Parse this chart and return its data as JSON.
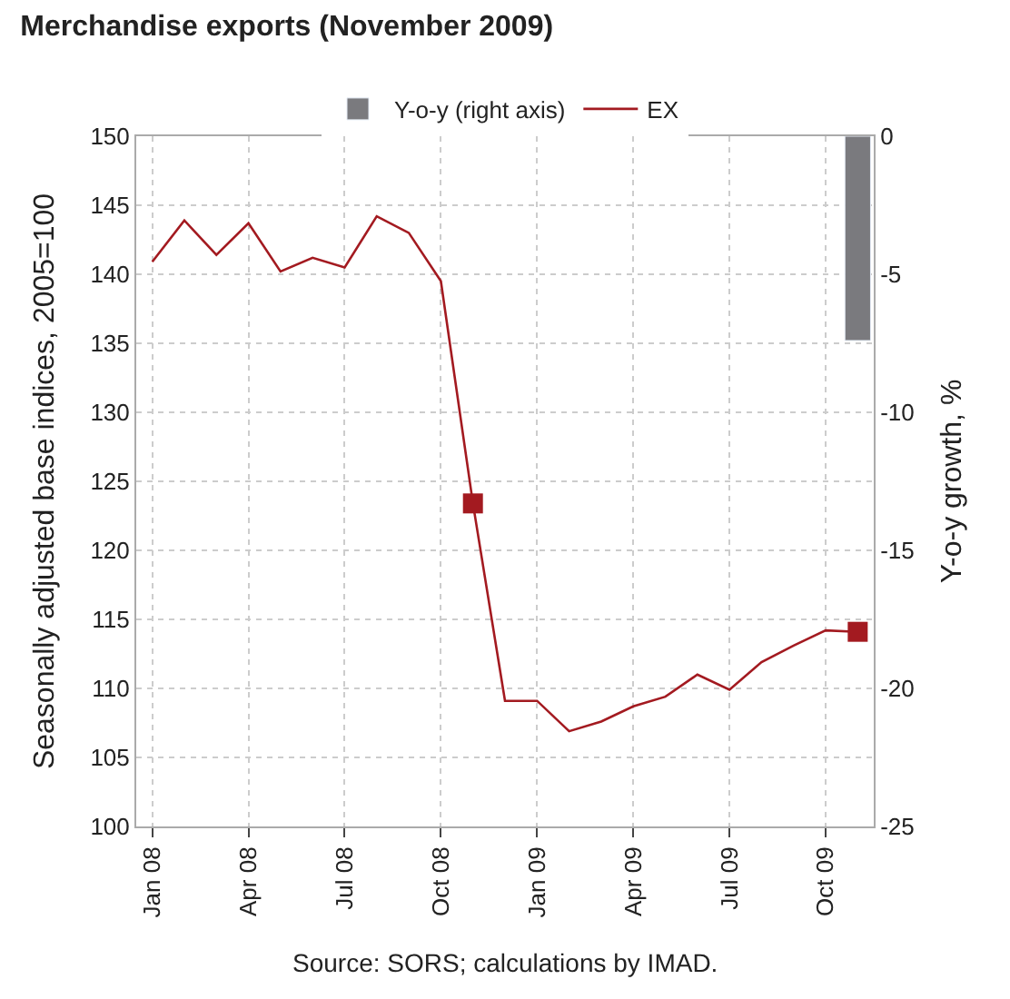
{
  "chart_data": {
    "type": "line",
    "title": "Merchandise exports (November 2009)",
    "categories": [
      "Jan 08",
      null,
      null,
      "Apr 08",
      null,
      null,
      "Jul 08",
      null,
      null,
      "Oct 08",
      null,
      null,
      "Jan 09",
      null,
      null,
      "Apr 09",
      null,
      null,
      "Jul 09",
      null,
      null,
      "Oct 09",
      null
    ],
    "series": [
      {
        "name": "Y-o-y (right axis)",
        "type": "bar",
        "axis": "y2",
        "color": "#7a7a7e",
        "values": [
          null,
          null,
          null,
          null,
          null,
          null,
          null,
          null,
          null,
          null,
          null,
          null,
          null,
          null,
          null,
          null,
          null,
          null,
          null,
          null,
          null,
          null,
          -7.4
        ]
      },
      {
        "name": "EX",
        "color": "#a31a20",
        "values": [
          140.9,
          143.9,
          141.4,
          143.7,
          140.2,
          141.2,
          140.5,
          144.2,
          143.0,
          139.5,
          123.4,
          109.1,
          109.1,
          106.9,
          107.6,
          108.7,
          109.4,
          111.0,
          109.9,
          111.9,
          113.1,
          114.2,
          114.1
        ]
      },
      {
        "type": "scatter",
        "marker": "square",
        "color": "#a31a20",
        "values": [
          null,
          null,
          null,
          null,
          null,
          null,
          null,
          null,
          null,
          null,
          123.4,
          null,
          null,
          null,
          null,
          null,
          null,
          null,
          null,
          null,
          null,
          null,
          114.1
        ]
      }
    ],
    "ylabel": "Seasonally adjusted base indices, 2005=100",
    "y2label": "Y-o-y growth, %",
    "ylim": [
      100,
      150
    ],
    "yticks": [
      100,
      105,
      110,
      115,
      120,
      125,
      130,
      135,
      140,
      145,
      150
    ],
    "y2lim": [
      -25,
      0
    ],
    "y2ticks": [
      -25,
      -20,
      -15,
      -10,
      -5,
      0
    ],
    "grid": true,
    "legend": "top",
    "annotations": [
      "Source: SORS; calculations by IMAD."
    ]
  }
}
